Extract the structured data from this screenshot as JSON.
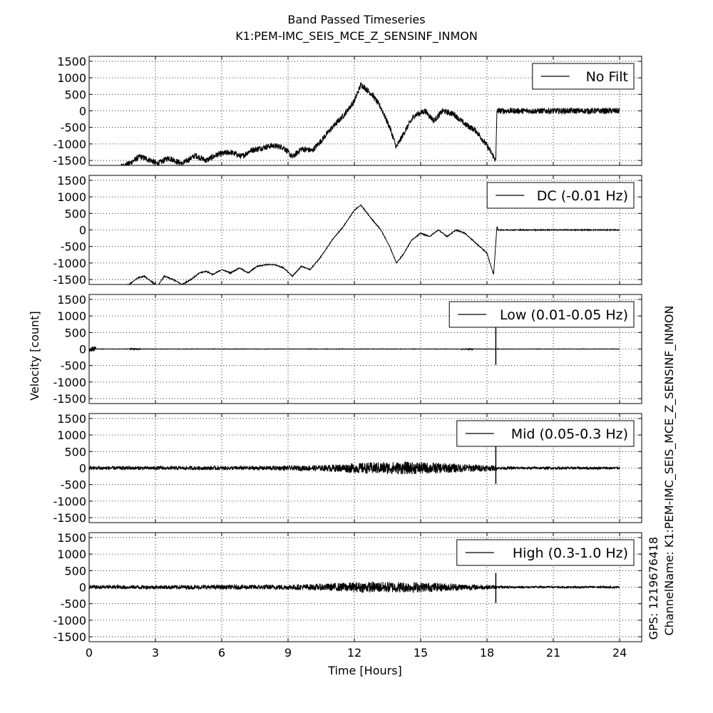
{
  "figure": {
    "title_line1": "Band Passed Timeseries",
    "title_line2": "K1:PEM-IMC_SEIS_MCE_Z_SENSINF_INMON",
    "xlabel": "Time [Hours]",
    "ylabel": "Velocity [count]",
    "side_channel": "ChannelName: K1:PEM-IMC_SEIS_MCE_Z_SENSINF_INMON",
    "side_gps": "GPS: 1219676418"
  },
  "chart_data": {
    "type": "line",
    "x_unit": "hours",
    "xlim": [
      0,
      25
    ],
    "xticks": [
      0,
      3,
      6,
      9,
      12,
      15,
      18,
      21,
      24
    ],
    "ylim": [
      -1650,
      1650
    ],
    "yticks": [
      1500,
      1000,
      500,
      0,
      -500,
      -1000,
      -1500
    ],
    "grid": true,
    "line_color": "#000000",
    "panels": [
      {
        "legend": "No Filt",
        "legend_position": "top-right",
        "kind": "raw",
        "noise_amplitude": 90,
        "x": [
          0,
          1.2,
          1.8,
          2.3,
          2.8,
          3.1,
          3.6,
          4.2,
          4.8,
          5.3,
          5.8,
          6.4,
          6.9,
          7.3,
          7.8,
          8.3,
          8.8,
          9.2,
          9.6,
          10.1,
          10.5,
          11.0,
          11.5,
          12.0,
          12.3,
          12.8,
          13.2,
          13.6,
          13.9,
          14.3,
          14.7,
          15.2,
          15.6,
          16.0,
          16.5,
          17.0,
          17.5,
          18.0,
          18.4,
          18.45,
          24.0
        ],
        "y": [
          -1800,
          -1750,
          -1600,
          -1380,
          -1500,
          -1600,
          -1420,
          -1600,
          -1350,
          -1500,
          -1320,
          -1250,
          -1380,
          -1200,
          -1120,
          -1050,
          -1100,
          -1400,
          -1150,
          -1200,
          -900,
          -500,
          -150,
          300,
          800,
          500,
          100,
          -500,
          -1100,
          -600,
          -150,
          0,
          -300,
          0,
          -100,
          -400,
          -600,
          -1050,
          -1500,
          0,
          0
        ]
      },
      {
        "legend": "DC (-0.01 Hz)",
        "legend_position": "top-right",
        "kind": "smooth",
        "noise_amplitude": 15,
        "x": [
          0,
          1.2,
          1.8,
          2.2,
          2.5,
          2.8,
          3.1,
          3.4,
          3.8,
          4.2,
          4.6,
          5.0,
          5.3,
          5.6,
          6.0,
          6.4,
          6.8,
          7.2,
          7.6,
          8.0,
          8.4,
          8.8,
          9.2,
          9.6,
          10.0,
          10.5,
          11.0,
          11.5,
          12.0,
          12.3,
          12.7,
          13.2,
          13.6,
          13.9,
          14.2,
          14.6,
          15.0,
          15.4,
          15.8,
          16.2,
          16.6,
          17.0,
          17.5,
          18.0,
          18.3,
          18.45,
          18.5,
          24.0
        ],
        "y": [
          -1750,
          -1700,
          -1650,
          -1450,
          -1400,
          -1550,
          -1700,
          -1400,
          -1500,
          -1650,
          -1500,
          -1300,
          -1250,
          -1350,
          -1200,
          -1300,
          -1150,
          -1300,
          -1100,
          -1050,
          -1050,
          -1150,
          -1400,
          -1100,
          -1200,
          -800,
          -300,
          100,
          600,
          750,
          400,
          0,
          -500,
          -1000,
          -750,
          -300,
          -100,
          -200,
          0,
          -200,
          0,
          -100,
          -400,
          -700,
          -1350,
          100,
          0,
          0
        ]
      },
      {
        "legend": "Low (0.01-0.05 Hz)",
        "legend_position": "top-right",
        "kind": "flat",
        "noise_amplitude": 6,
        "bursts": [
          {
            "x": 0.05,
            "amplitude": 80
          },
          {
            "x": 2.1,
            "amplitude": 25
          },
          {
            "x": 17.1,
            "amplitude": 20
          }
        ],
        "spike": {
          "x": 18.4,
          "max": 650,
          "min": -480
        }
      },
      {
        "legend": "Mid (0.05-0.3 Hz)",
        "legend_position": "top-right",
        "kind": "noise",
        "envelope_x": [
          0,
          3,
          6,
          9,
          10.5,
          11.5,
          12.5,
          13.5,
          14.5,
          15.5,
          16.5,
          17.5,
          18.4,
          18.45,
          24.0
        ],
        "envelope_y": [
          60,
          55,
          60,
          70,
          90,
          130,
          170,
          190,
          190,
          170,
          140,
          110,
          80,
          40,
          40
        ],
        "spike": {
          "x": 18.4,
          "max": 650,
          "min": -480
        }
      },
      {
        "legend": "High (0.3-1.0 Hz)",
        "legend_position": "top-right",
        "kind": "noise",
        "envelope_x": [
          0,
          3,
          6,
          9,
          10.5,
          11.5,
          12.5,
          13.5,
          14.5,
          15.5,
          16.5,
          17.5,
          18.4,
          18.45,
          24.0
        ],
        "envelope_y": [
          60,
          60,
          70,
          80,
          100,
          140,
          160,
          170,
          160,
          140,
          110,
          80,
          60,
          30,
          30
        ],
        "spike": {
          "x": 18.4,
          "max": 430,
          "min": -480
        }
      }
    ]
  }
}
